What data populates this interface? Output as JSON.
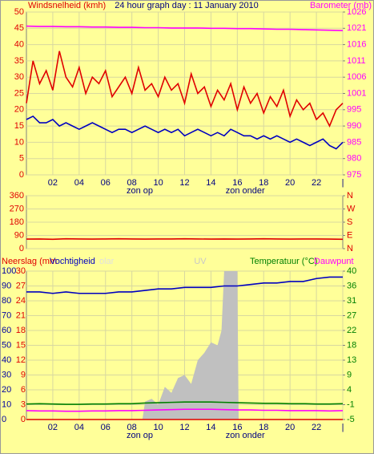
{
  "chart_data": [
    {
      "type": "line",
      "title": "24 hour graph day : 11 January 2010",
      "ylabel": "Windsnelheid (kmh)",
      "y2label": "Barometer (mb)",
      "x": [
        0,
        0.5,
        1,
        1.5,
        2,
        2.5,
        3,
        3.5,
        4,
        4.5,
        5,
        5.5,
        6,
        6.5,
        7,
        7.5,
        8,
        8.5,
        9,
        9.5,
        10,
        10.5,
        11,
        11.5,
        12,
        12.5,
        13,
        13.5,
        14,
        14.5,
        15,
        15.5,
        16,
        16.5,
        17,
        17.5,
        18,
        18.5,
        19,
        19.5,
        20,
        20.5,
        21,
        21.5,
        22,
        22.5,
        23,
        23.5,
        24
      ],
      "xlim": [
        0,
        24
      ],
      "xticks": [
        {
          "value": 2,
          "label": "02"
        },
        {
          "value": 4,
          "label": "04"
        },
        {
          "value": 6,
          "label": "06"
        },
        {
          "value": 8,
          "label": "08"
        },
        {
          "value": 10,
          "label": "10"
        },
        {
          "value": 12,
          "label": "12"
        },
        {
          "value": 14,
          "label": "14"
        },
        {
          "value": 16,
          "label": "16"
        },
        {
          "value": 18,
          "label": "18"
        },
        {
          "value": 20,
          "label": "20"
        },
        {
          "value": 22,
          "label": "22"
        },
        {
          "value": 24,
          "label": "|"
        }
      ],
      "ylim": [
        0,
        50
      ],
      "yticks": [
        0,
        5,
        10,
        15,
        20,
        25,
        30,
        35,
        40,
        45,
        50
      ],
      "y2lim": [
        975,
        1026
      ],
      "y2ticks": [
        975,
        {
          "value": 980.1,
          "label": "980"
        },
        {
          "value": 985.2,
          "label": "985"
        },
        {
          "value": 990.3,
          "label": "990"
        },
        {
          "value": 995.4,
          "label": "995"
        },
        {
          "value": 1000.5,
          "label": "1001"
        },
        {
          "value": 1005.6,
          "label": "1006"
        },
        {
          "value": 1010.7,
          "label": "1011"
        },
        {
          "value": 1015.8,
          "label": "1016"
        },
        {
          "value": 1020.9,
          "label": "1021"
        },
        1026
      ],
      "grid": true,
      "annotations": [
        {
          "text": "zon op",
          "x": 8.6
        },
        {
          "text": "zon onder",
          "x": 16.6
        }
      ],
      "series": [
        {
          "color": "#ff00ff",
          "axis": "y2",
          "x": [
            0,
            1,
            2,
            3,
            4,
            5,
            6,
            7,
            8,
            9,
            10,
            11,
            12,
            13,
            14,
            15,
            16,
            17,
            18,
            19,
            20,
            21,
            22,
            23,
            24
          ],
          "values": [
            1021.6,
            1021.5,
            1021.5,
            1021.4,
            1021.4,
            1021.3,
            1021.3,
            1021.2,
            1021.2,
            1021.1,
            1021.1,
            1021.0,
            1021.0,
            1021.0,
            1020.9,
            1020.9,
            1020.8,
            1020.8,
            1020.7,
            1020.6,
            1020.6,
            1020.5,
            1020.4,
            1020.3,
            1020.2
          ]
        },
        {
          "color": "#e00000",
          "values": [
            22,
            35,
            28,
            32,
            26,
            38,
            30,
            27,
            33,
            25,
            30,
            28,
            32,
            24,
            27,
            30,
            25,
            33,
            26,
            28,
            24,
            30,
            26,
            28,
            22,
            31,
            25,
            27,
            21,
            26,
            23,
            28,
            20,
            27,
            22,
            25,
            19,
            24,
            21,
            26,
            18,
            23,
            20,
            22,
            17,
            19,
            15,
            20,
            22
          ]
        },
        {
          "color": "#0000c0",
          "values": [
            17,
            18,
            16,
            16,
            17,
            15,
            16,
            15,
            14,
            15,
            16,
            15,
            14,
            13,
            14,
            14,
            13,
            14,
            15,
            14,
            13,
            14,
            13,
            14,
            12,
            13,
            14,
            13,
            12,
            13,
            12,
            14,
            13,
            12,
            12,
            11,
            12,
            11,
            12,
            11,
            10,
            11,
            10,
            9,
            10,
            11,
            9,
            8,
            10
          ]
        }
      ]
    },
    {
      "type": "line",
      "x": [
        0,
        1,
        2,
        3,
        4,
        5,
        6,
        7,
        8,
        9,
        10,
        11,
        12,
        13,
        14,
        15,
        16,
        17,
        18,
        19,
        20,
        21,
        22,
        23,
        24
      ],
      "xlim": [
        0,
        24
      ],
      "ylim": [
        0,
        360
      ],
      "yticks": [
        0,
        90,
        180,
        270,
        360
      ],
      "y2lim": [
        0,
        360
      ],
      "y2ticks": [
        {
          "value": 0,
          "label": "N"
        },
        {
          "value": 90,
          "label": "E"
        },
        {
          "value": 180,
          "label": "S"
        },
        {
          "value": 270,
          "label": "W"
        },
        {
          "value": 360,
          "label": "N"
        }
      ],
      "grid": true,
      "series": [
        {
          "color": "#e00000",
          "values": [
            65,
            66,
            64,
            67,
            66,
            65,
            66,
            67,
            66,
            65,
            66,
            66,
            67,
            66,
            65,
            66,
            65,
            66,
            67,
            66,
            65,
            66,
            66,
            65,
            64
          ]
        }
      ]
    },
    {
      "type": "line",
      "labels": [
        "Neerslag (mm",
        "Vochtigheid",
        "olar",
        "UV",
        "Temperatuur (°C)",
        "Dauwpunt"
      ],
      "x": [
        0,
        1,
        2,
        3,
        4,
        5,
        6,
        7,
        8,
        9,
        10,
        11,
        12,
        13,
        14,
        15,
        16,
        17,
        18,
        19,
        20,
        21,
        22,
        23,
        24
      ],
      "xlim": [
        0,
        24
      ],
      "xticks": [
        {
          "value": 2,
          "label": "02"
        },
        {
          "value": 4,
          "label": "04"
        },
        {
          "value": 6,
          "label": "06"
        },
        {
          "value": 8,
          "label": "08"
        },
        {
          "value": 10,
          "label": "10"
        },
        {
          "value": 12,
          "label": "12"
        },
        {
          "value": 14,
          "label": "14"
        },
        {
          "value": 16,
          "label": "16"
        },
        {
          "value": 18,
          "label": "18"
        },
        {
          "value": 20,
          "label": "20"
        },
        {
          "value": 22,
          "label": "22"
        },
        {
          "value": 24,
          "label": "|"
        }
      ],
      "ylim": [
        0,
        100
      ],
      "yticks": [
        0,
        10,
        20,
        30,
        40,
        50,
        60,
        70,
        80,
        90,
        100
      ],
      "y3lim": [
        0,
        30
      ],
      "y3ticks": [
        0,
        3,
        6,
        9,
        12,
        15,
        18,
        21,
        24,
        27,
        30
      ],
      "y2lim": [
        -5,
        40
      ],
      "y2ticks": [
        -5,
        {
          "value": -0.5,
          "label": "-1"
        },
        4,
        {
          "value": 8.5,
          "label": "9"
        },
        13,
        {
          "value": 17.5,
          "label": "18"
        },
        22,
        {
          "value": 26.5,
          "label": "27"
        },
        31,
        {
          "value": 35.5,
          "label": "36"
        },
        40
      ],
      "grid": true,
      "annotations": [
        {
          "text": "zon op",
          "x": 8.6
        },
        {
          "text": "zon onder",
          "x": 16.6
        }
      ],
      "series": [
        {
          "color": "#c0c0c0",
          "style": "area",
          "x": [
            8.8,
            9,
            9.5,
            10,
            10.5,
            11,
            11.5,
            12,
            12.5,
            13,
            13.5,
            14,
            14.5,
            14.8,
            15,
            15.5,
            16,
            16.1
          ],
          "values": [
            0,
            12,
            14,
            10,
            22,
            18,
            28,
            30,
            24,
            40,
            45,
            52,
            50,
            60,
            100,
            100,
            100,
            0
          ]
        },
        {
          "color": "#0000c0",
          "values": [
            86,
            86,
            85,
            86,
            85,
            85,
            85,
            86,
            86,
            87,
            88,
            88,
            89,
            89,
            89,
            90,
            90,
            91,
            92,
            92,
            93,
            93,
            95,
            96,
            96
          ]
        },
        {
          "color": "#008000",
          "axis": "y2",
          "values": [
            -0.3,
            -0.2,
            -0.3,
            -0.4,
            -0.4,
            -0.3,
            -0.3,
            -0.2,
            -0.2,
            0,
            0.1,
            0.2,
            0.3,
            0.3,
            0.3,
            0.2,
            0.1,
            0,
            -0.1,
            -0.1,
            -0.2,
            -0.2,
            -0.3,
            -0.3,
            -0.2
          ]
        },
        {
          "color": "#ff00ff",
          "axis": "y2",
          "values": [
            -2.3,
            -2.4,
            -2.4,
            -2.5,
            -2.5,
            -2.4,
            -2.4,
            -2.3,
            -2.3,
            -2.2,
            -2.1,
            -2.0,
            -1.9,
            -1.9,
            -1.9,
            -2.0,
            -2.1,
            -2.1,
            -2.2,
            -2.2,
            -2.3,
            -2.3,
            -2.3,
            -2.4,
            -2.3
          ]
        },
        {
          "color": "#e00000",
          "axis": "y3",
          "values": [
            0,
            0,
            0,
            0,
            0,
            0,
            0,
            0,
            0,
            0,
            0,
            0,
            0,
            0,
            0,
            0,
            0,
            0,
            0,
            0,
            0,
            0,
            0,
            0,
            0
          ]
        }
      ]
    }
  ]
}
